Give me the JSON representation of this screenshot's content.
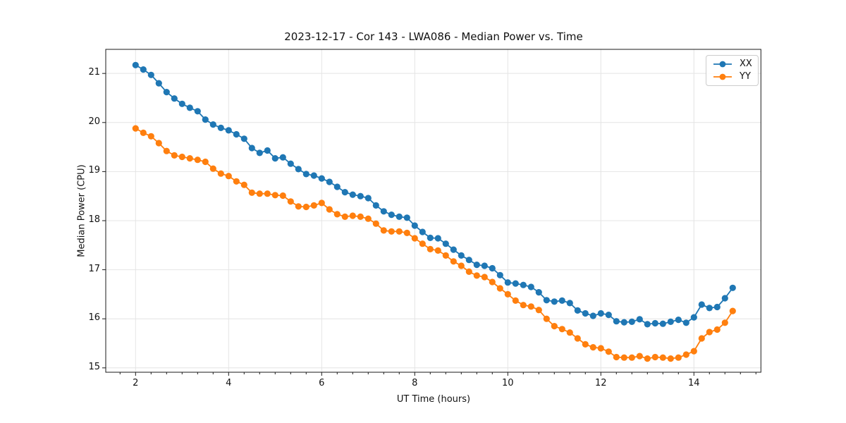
{
  "chart_data": {
    "type": "line",
    "title": "2023-12-17 - Cor 143 - LWA086 - Median Power vs. Time",
    "xlabel": "UT Time (hours)",
    "ylabel": "Median Power (CPU)",
    "xlim": [
      1.359,
      15.44
    ],
    "ylim": [
      14.911,
      21.491
    ],
    "x_major_ticks": [
      2,
      4,
      6,
      8,
      10,
      12,
      14
    ],
    "y_major_ticks": [
      15,
      16,
      17,
      18,
      19,
      20,
      21
    ],
    "x_minor_step": 0.33333,
    "grid": true,
    "legend_position": "upper right",
    "marker": "o",
    "x": [
      2.0,
      2.1667,
      2.3333,
      2.5,
      2.6667,
      2.8333,
      3.0,
      3.1667,
      3.3333,
      3.5,
      3.6667,
      3.8333,
      4.0,
      4.1667,
      4.3333,
      4.5,
      4.6667,
      4.8333,
      5.0,
      5.1667,
      5.3333,
      5.5,
      5.6667,
      5.8333,
      6.0,
      6.1667,
      6.3333,
      6.5,
      6.6667,
      6.8333,
      7.0,
      7.1667,
      7.3333,
      7.5,
      7.6667,
      7.8333,
      8.0,
      8.1667,
      8.3333,
      8.5,
      8.6667,
      8.8333,
      9.0,
      9.1667,
      9.3333,
      9.5,
      9.6667,
      9.8333,
      10.0,
      10.1667,
      10.3333,
      10.5,
      10.6667,
      10.8333,
      11.0,
      11.1667,
      11.3333,
      11.5,
      11.6667,
      11.8333,
      12.0,
      12.1667,
      12.3333,
      12.5,
      12.6667,
      12.8333,
      13.0,
      13.1667,
      13.3333,
      13.5,
      13.6667,
      13.8333,
      14.0,
      14.1667,
      14.3333,
      14.5,
      14.6667,
      14.8333
    ],
    "series": [
      {
        "name": "XX",
        "color": "#1f77b4",
        "values": [
          21.17,
          21.08,
          20.97,
          20.8,
          20.62,
          20.49,
          20.38,
          20.3,
          20.23,
          20.06,
          19.96,
          19.89,
          19.84,
          19.76,
          19.67,
          19.48,
          19.38,
          19.43,
          19.27,
          19.29,
          19.16,
          19.05,
          18.95,
          18.92,
          18.86,
          18.79,
          18.69,
          18.58,
          18.53,
          18.5,
          18.46,
          18.31,
          18.19,
          18.12,
          18.08,
          18.06,
          17.9,
          17.77,
          17.65,
          17.64,
          17.53,
          17.41,
          17.29,
          17.2,
          17.1,
          17.08,
          17.03,
          16.89,
          16.74,
          16.72,
          16.69,
          16.65,
          16.54,
          16.38,
          16.35,
          16.37,
          16.32,
          16.17,
          16.11,
          16.06,
          16.11,
          16.08,
          15.95,
          15.93,
          15.94,
          15.99,
          15.89,
          15.91,
          15.9,
          15.94,
          15.98,
          15.92,
          16.03,
          16.29,
          16.22,
          16.24,
          16.42,
          16.63
        ]
      },
      {
        "name": "YY",
        "color": "#ff7f0e",
        "values": [
          19.88,
          19.79,
          19.72,
          19.58,
          19.42,
          19.33,
          19.3,
          19.27,
          19.24,
          19.2,
          19.06,
          18.96,
          18.91,
          18.8,
          18.73,
          18.57,
          18.55,
          18.55,
          18.52,
          18.51,
          18.39,
          18.29,
          18.28,
          18.31,
          18.36,
          18.23,
          18.13,
          18.08,
          18.1,
          18.08,
          18.04,
          17.94,
          17.8,
          17.78,
          17.78,
          17.75,
          17.64,
          17.53,
          17.42,
          17.39,
          17.29,
          17.17,
          17.08,
          16.96,
          16.88,
          16.85,
          16.75,
          16.62,
          16.5,
          16.37,
          16.28,
          16.25,
          16.18,
          16.0,
          15.85,
          15.79,
          15.72,
          15.6,
          15.48,
          15.42,
          15.4,
          15.33,
          15.22,
          15.21,
          15.21,
          15.24,
          15.19,
          15.22,
          15.21,
          15.19,
          15.21,
          15.27,
          15.34,
          15.6,
          15.73,
          15.78,
          15.92,
          16.16
        ]
      }
    ]
  }
}
